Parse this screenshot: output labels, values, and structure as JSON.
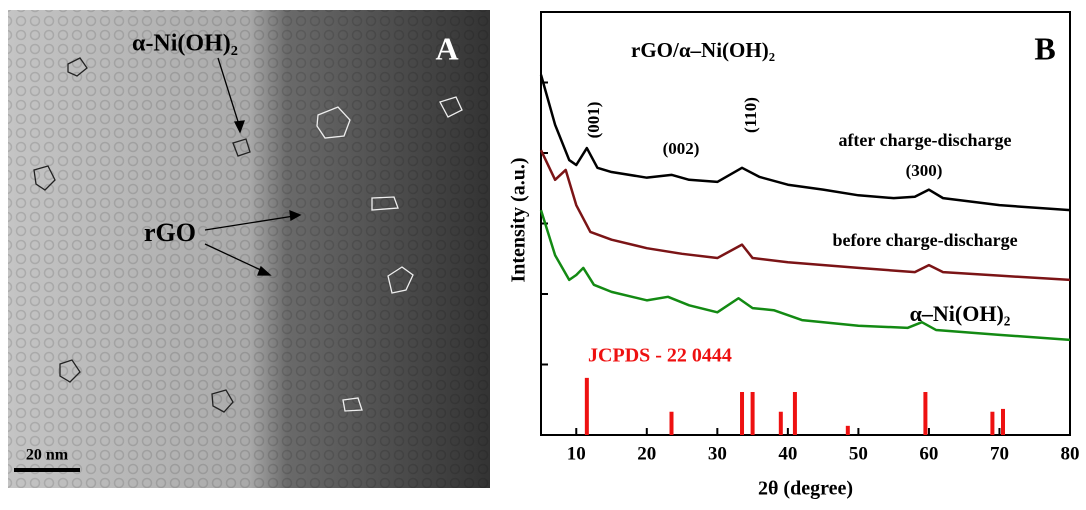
{
  "panel_a": {
    "label": "A",
    "annotations": [
      "α-Ni(OH)₂",
      "rGO"
    ],
    "scale_bar": "20 nm"
  },
  "chart_data": {
    "type": "line",
    "panel_label": "B",
    "title": "rGO/α–Ni(OH)₂",
    "x_label": "2θ (degree)",
    "y_label": "Intensity (a.u.)",
    "xlim": [
      5,
      80
    ],
    "xticks": [
      10,
      20,
      30,
      40,
      50,
      60,
      70,
      80
    ],
    "ylim": [
      0,
      6
    ],
    "yticks": [
      1,
      2,
      3,
      4,
      5
    ],
    "series": [
      {
        "name": "after charge-discharge",
        "color": "#000000",
        "x": [
          5,
          7,
          9,
          10,
          11.5,
          13,
          15,
          20,
          23.5,
          26,
          30,
          33.5,
          36,
          40,
          45,
          50,
          55,
          58,
          60,
          62,
          70,
          80
        ],
        "values": [
          5.11,
          4.4,
          3.9,
          3.83,
          4.07,
          3.79,
          3.73,
          3.65,
          3.69,
          3.62,
          3.59,
          3.79,
          3.66,
          3.55,
          3.48,
          3.4,
          3.36,
          3.38,
          3.48,
          3.36,
          3.26,
          3.19
        ]
      },
      {
        "name": "before charge-discharge",
        "color": "#7b1416",
        "x": [
          5,
          7,
          8.5,
          10,
          12,
          15,
          20,
          25,
          30,
          33.5,
          35,
          40,
          50,
          58,
          60,
          62,
          70,
          80
        ],
        "values": [
          4.04,
          3.62,
          3.76,
          3.26,
          2.88,
          2.77,
          2.65,
          2.57,
          2.51,
          2.7,
          2.51,
          2.45,
          2.37,
          2.31,
          2.41,
          2.31,
          2.26,
          2.2
        ]
      },
      {
        "name": "α–Ni(OH)₂",
        "color": "#138a13",
        "x": [
          5,
          7,
          9,
          10,
          11,
          12.5,
          15,
          20,
          23,
          26,
          30,
          33,
          35,
          38,
          42,
          50,
          57,
          59,
          61,
          70,
          80
        ],
        "values": [
          3.19,
          2.55,
          2.2,
          2.27,
          2.37,
          2.13,
          2.03,
          1.91,
          1.96,
          1.84,
          1.74,
          1.94,
          1.8,
          1.77,
          1.63,
          1.55,
          1.52,
          1.6,
          1.49,
          1.42,
          1.35
        ]
      }
    ],
    "reference": {
      "name": "JCPDS - 22 0444",
      "color": "#ee1111",
      "x": [
        11.5,
        23.5,
        33.5,
        35,
        39,
        41,
        48.5,
        59.5,
        69,
        70.5
      ],
      "values": [
        0.81,
        0.33,
        0.61,
        0.61,
        0.33,
        0.61,
        0.13,
        0.61,
        0.33,
        0.37
      ]
    },
    "annotations": [
      "(001)",
      "(002)",
      "(110)",
      "(300)"
    ]
  }
}
